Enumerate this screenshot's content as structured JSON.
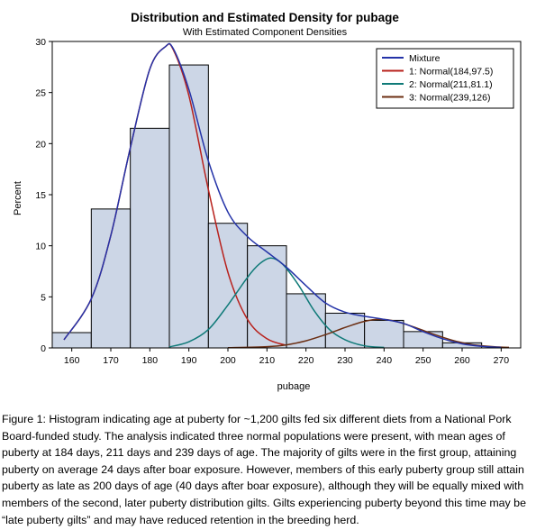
{
  "chart_data": {
    "type": "bar",
    "title": "Distribution and Estimated Density for pubage",
    "subtitle": "With Estimated Component Densities",
    "xlabel": "pubage",
    "ylabel": "Percent",
    "xlim": [
      155,
      275
    ],
    "ylim": [
      0,
      30
    ],
    "xticks": [
      160,
      170,
      180,
      190,
      200,
      210,
      220,
      230,
      240,
      250,
      260,
      270
    ],
    "yticks": [
      0,
      5,
      10,
      15,
      20,
      25,
      30
    ],
    "grid": false,
    "legend_position": "top-right",
    "bins": [
      {
        "x0": 155,
        "x1": 165,
        "value": 1.5
      },
      {
        "x0": 165,
        "x1": 175,
        "value": 13.6
      },
      {
        "x0": 175,
        "x1": 185,
        "value": 21.5
      },
      {
        "x0": 185,
        "x1": 195,
        "value": 27.7
      },
      {
        "x0": 195,
        "x1": 205,
        "value": 12.2
      },
      {
        "x0": 205,
        "x1": 215,
        "value": 10.0
      },
      {
        "x0": 215,
        "x1": 225,
        "value": 5.3
      },
      {
        "x0": 225,
        "x1": 235,
        "value": 3.4
      },
      {
        "x0": 235,
        "x1": 245,
        "value": 2.7
      },
      {
        "x0": 245,
        "x1": 255,
        "value": 1.6
      },
      {
        "x0": 255,
        "x1": 265,
        "value": 0.5
      }
    ],
    "bar_color": "#ccd6e6",
    "series": [
      {
        "name": "Mixture",
        "color": "#2433a8",
        "x": [
          158,
          165,
          170,
          175,
          180,
          184,
          186,
          190,
          195,
          200,
          205,
          210,
          215,
          220,
          225,
          230,
          235,
          240,
          245,
          250,
          255,
          260,
          265,
          270
        ],
        "values": [
          0.8,
          4.8,
          11.0,
          19.6,
          27.3,
          29.5,
          29.3,
          25.3,
          18.3,
          13.3,
          10.9,
          9.4,
          7.9,
          6.1,
          4.4,
          3.5,
          3.1,
          2.8,
          2.4,
          1.6,
          0.9,
          0.4,
          0.15,
          0.05
        ]
      },
      {
        "name": "1: Normal(184,97.5)",
        "color": "#b8211c",
        "x": [
          158,
          165,
          170,
          175,
          180,
          184,
          186,
          190,
          195,
          200,
          205,
          210,
          215
        ],
        "values": [
          0.8,
          4.8,
          11.0,
          19.6,
          27.3,
          29.5,
          29.2,
          24.7,
          15.5,
          7.4,
          2.8,
          0.9,
          0.25
        ]
      },
      {
        "name": "2: Normal(211,81.1)",
        "color": "#0f7a78",
        "x": [
          185,
          190,
          195,
          200,
          205,
          208,
          211,
          214,
          218,
          222,
          226,
          230,
          235,
          240
        ],
        "values": [
          0.1,
          0.6,
          1.8,
          4.2,
          6.9,
          8.2,
          8.8,
          8.2,
          6.2,
          3.7,
          1.8,
          0.8,
          0.2,
          0.05
        ]
      },
      {
        "name": "3: Normal(239,126)",
        "color": "#6b2e12",
        "x": [
          200,
          210,
          215,
          220,
          225,
          230,
          235,
          239,
          243,
          248,
          253,
          258,
          263,
          268,
          272
        ],
        "values": [
          0.02,
          0.12,
          0.3,
          0.7,
          1.3,
          2.0,
          2.6,
          2.8,
          2.6,
          2.0,
          1.3,
          0.7,
          0.3,
          0.12,
          0.05
        ]
      }
    ]
  },
  "caption": "Figure 1: Histogram indicating age at puberty for ~1,200 gilts fed six different diets from a National Pork Board-funded study. The analysis indicated three normal populations were present, with mean ages of puberty at 184 days, 211 days and 239 days of age. The majority of gilts were in the first group, attaining puberty on average 24 days after boar exposure. However, members of this early puberty group still attain puberty as late as 200 days of age (40 days after boar exposure), although they will be equally mixed with members of the second, later puberty distribution gilts. Gilts experiencing puberty beyond this time may be “late puberty gilts” and may have reduced retention in the breeding herd."
}
